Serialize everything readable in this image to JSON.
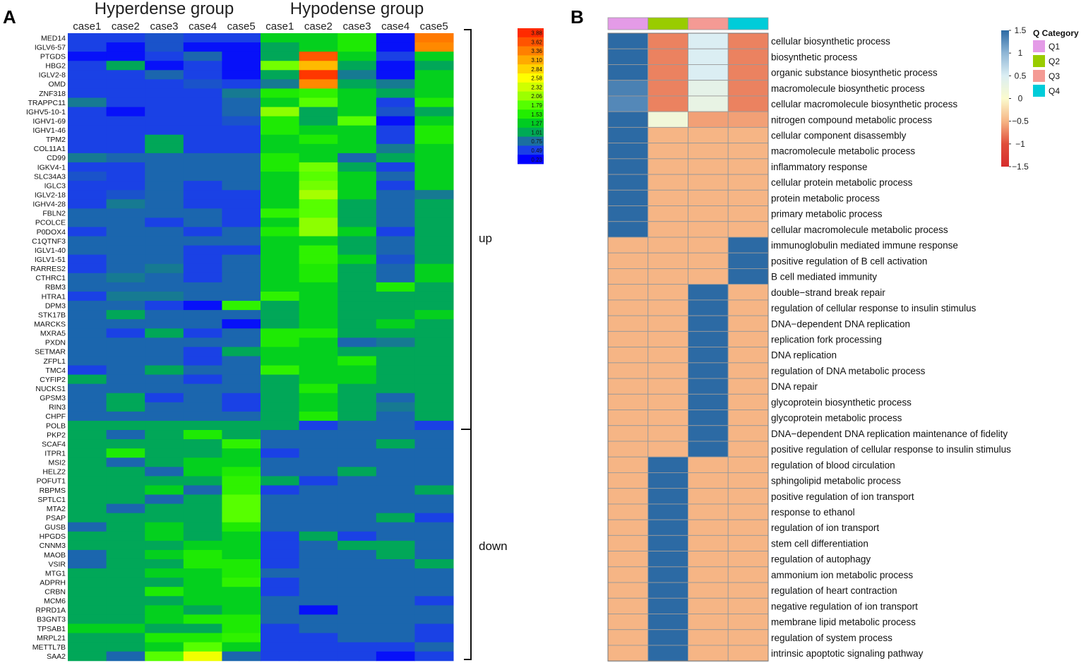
{
  "panels": {
    "a_letter": "A",
    "b_letter": "B"
  },
  "chart_data": [
    {
      "type": "heatmap",
      "panel": "A",
      "group_titles": [
        "Hyperdense group",
        "Hypodense group"
      ],
      "columns": [
        "case1",
        "case2",
        "case3",
        "case4",
        "case5",
        "case1",
        "case2",
        "case3",
        "case4",
        "case5"
      ],
      "rows": [
        "MED14",
        "IGLV6-57",
        "PTGDS",
        "HBG2",
        "IGLV2-8",
        "OMD",
        "ZNF318",
        "TRAPPC11",
        "IGHV5-10-1",
        "IGHV1-69",
        "IGHV1-46",
        "TPM2",
        "COL11A1",
        "CD99",
        "IGKV4-1",
        "SLC34A3",
        "IGLC3",
        "IGLV2-18",
        "IGHV4-28",
        "FBLN2",
        "PCOLCE",
        "P0DOX4",
        "C1QTNF3",
        "IGLV1-40",
        "IGLV1-51",
        "RARRES2",
        "CTHRC1",
        "RBM3",
        "HTRA1",
        "DPM3",
        "STK17B",
        "MARCKS",
        "MXRA5",
        "PXDN",
        "SETMAR",
        "ZFPL1",
        "TMC4",
        "CYFIP2",
        "NUCKS1",
        "GPSM3",
        "RIN3",
        "CHPF",
        "POLB",
        "PKP2",
        "SCAF4",
        "ITPR1",
        "MSI2",
        "HELZ2",
        "POFUT1",
        "RBPMS",
        "SPTLC1",
        "MTA2",
        "PSAP",
        "GUSB",
        "HPGDS",
        "CNNM3",
        "MAOB",
        "VSIR",
        "MTG1",
        "ADPRH",
        "CRBN",
        "MCM6",
        "RPRD1A",
        "B3GNT3",
        "TPSAB1",
        "MRPL21",
        "METTL7B",
        "SAA2"
      ],
      "values": [
        [
          0.5,
          0.5,
          0.6,
          0.5,
          0.5,
          1.3,
          1.3,
          1.5,
          0.3,
          3.4
        ],
        [
          0.5,
          0.3,
          0.6,
          0.3,
          0.3,
          1.0,
          1.3,
          1.5,
          0.3,
          3.3
        ],
        [
          0.3,
          0.3,
          0.5,
          0.7,
          0.3,
          1.0,
          3.6,
          1.3,
          0.5,
          1.3
        ],
        [
          0.5,
          1.0,
          0.3,
          0.5,
          0.3,
          1.9,
          3.0,
          1.0,
          0.3,
          1.0
        ],
        [
          0.5,
          0.5,
          0.7,
          0.5,
          0.3,
          1.0,
          3.8,
          0.8,
          0.3,
          1.3
        ],
        [
          0.5,
          0.5,
          0.5,
          0.6,
          0.5,
          0.8,
          3.3,
          1.0,
          0.8,
          1.3
        ],
        [
          0.5,
          0.5,
          0.5,
          0.5,
          0.8,
          1.5,
          1.6,
          1.3,
          1.0,
          1.3
        ],
        [
          0.8,
          0.5,
          0.5,
          0.5,
          0.7,
          1.3,
          1.8,
          1.3,
          0.5,
          1.5
        ],
        [
          0.5,
          0.3,
          0.5,
          0.5,
          0.7,
          2.0,
          1.0,
          1.3,
          0.6,
          1.0
        ],
        [
          0.5,
          0.5,
          0.5,
          0.5,
          0.6,
          1.5,
          1.0,
          1.8,
          0.3,
          1.3
        ],
        [
          0.5,
          0.5,
          0.5,
          0.5,
          0.5,
          1.5,
          1.3,
          1.3,
          0.5,
          1.5
        ],
        [
          0.5,
          0.5,
          1.0,
          0.5,
          0.5,
          1.3,
          1.5,
          1.3,
          0.5,
          1.5
        ],
        [
          0.5,
          0.5,
          1.0,
          0.5,
          0.5,
          1.3,
          1.3,
          1.3,
          0.8,
          1.3
        ],
        [
          0.8,
          0.7,
          0.7,
          0.7,
          0.7,
          1.5,
          1.3,
          0.7,
          1.0,
          1.3
        ],
        [
          0.5,
          0.5,
          0.7,
          0.7,
          0.7,
          1.5,
          1.9,
          1.0,
          0.5,
          1.3
        ],
        [
          0.6,
          0.5,
          0.7,
          0.7,
          0.7,
          1.3,
          1.8,
          1.3,
          0.7,
          1.3
        ],
        [
          0.5,
          0.5,
          0.7,
          0.5,
          0.7,
          1.3,
          1.9,
          1.3,
          0.5,
          1.3
        ],
        [
          0.5,
          0.6,
          0.7,
          0.5,
          0.5,
          1.3,
          2.1,
          1.3,
          0.7,
          0.8
        ],
        [
          0.5,
          0.8,
          0.7,
          0.5,
          0.5,
          1.3,
          1.8,
          1.0,
          0.7,
          1.0
        ],
        [
          0.7,
          0.7,
          0.7,
          0.7,
          0.5,
          1.6,
          1.8,
          1.0,
          0.7,
          1.0
        ],
        [
          0.7,
          0.7,
          0.5,
          0.7,
          0.5,
          1.3,
          2.0,
          1.0,
          0.7,
          1.0
        ],
        [
          0.5,
          0.7,
          0.7,
          0.5,
          0.7,
          1.5,
          2.0,
          1.3,
          0.5,
          1.0
        ],
        [
          0.7,
          0.7,
          0.7,
          0.7,
          0.7,
          1.3,
          1.3,
          1.0,
          0.7,
          1.0
        ],
        [
          0.7,
          0.7,
          0.7,
          0.5,
          0.5,
          1.3,
          1.6,
          1.0,
          0.7,
          1.0
        ],
        [
          0.5,
          0.7,
          0.7,
          0.5,
          0.7,
          1.3,
          1.6,
          1.3,
          0.6,
          1.0
        ],
        [
          0.5,
          0.7,
          0.8,
          0.5,
          0.7,
          1.3,
          1.5,
          1.0,
          0.7,
          1.3
        ],
        [
          0.7,
          0.8,
          0.7,
          0.5,
          0.7,
          1.3,
          1.5,
          1.0,
          0.7,
          1.3
        ],
        [
          0.7,
          0.7,
          0.7,
          0.7,
          0.7,
          1.3,
          1.3,
          1.0,
          1.5,
          1.0
        ],
        [
          0.5,
          0.8,
          0.8,
          0.7,
          0.7,
          1.6,
          1.3,
          1.0,
          1.0,
          1.0
        ],
        [
          0.7,
          0.7,
          0.5,
          0.3,
          1.6,
          1.0,
          1.3,
          1.0,
          1.0,
          1.0
        ],
        [
          0.7,
          1.0,
          0.7,
          0.7,
          0.7,
          1.0,
          1.3,
          1.0,
          1.0,
          1.3
        ],
        [
          0.7,
          0.7,
          0.7,
          0.7,
          0.3,
          1.0,
          1.3,
          1.0,
          1.3,
          1.0
        ],
        [
          0.7,
          0.5,
          1.0,
          0.5,
          0.7,
          1.5,
          1.5,
          1.0,
          1.0,
          1.0
        ],
        [
          0.7,
          0.7,
          0.7,
          0.7,
          0.7,
          1.5,
          1.3,
          0.7,
          0.8,
          1.0
        ],
        [
          0.7,
          0.7,
          0.7,
          0.5,
          1.0,
          1.3,
          1.3,
          1.0,
          1.0,
          1.0
        ],
        [
          0.7,
          0.7,
          0.7,
          0.5,
          0.7,
          1.3,
          1.3,
          1.5,
          1.0,
          1.0
        ],
        [
          0.5,
          0.7,
          1.0,
          0.7,
          0.7,
          1.6,
          1.3,
          1.3,
          1.0,
          1.0
        ],
        [
          1.0,
          0.7,
          0.7,
          0.5,
          0.7,
          1.0,
          1.3,
          1.3,
          1.0,
          1.0
        ],
        [
          0.7,
          0.7,
          0.7,
          0.7,
          0.7,
          1.0,
          1.5,
          1.0,
          1.0,
          1.0
        ],
        [
          0.7,
          1.0,
          0.5,
          0.7,
          0.5,
          1.0,
          1.3,
          1.0,
          0.7,
          1.0
        ],
        [
          0.7,
          1.0,
          0.7,
          0.7,
          0.5,
          1.0,
          1.3,
          1.0,
          0.8,
          1.0
        ],
        [
          0.7,
          0.7,
          0.7,
          0.7,
          0.7,
          1.0,
          1.5,
          1.0,
          0.7,
          1.0
        ],
        [
          1.0,
          1.0,
          1.0,
          1.0,
          1.0,
          1.0,
          0.5,
          0.7,
          0.7,
          0.5
        ],
        [
          1.0,
          0.7,
          1.0,
          1.5,
          1.0,
          0.7,
          0.7,
          0.7,
          0.7,
          0.7
        ],
        [
          1.0,
          1.0,
          1.0,
          1.0,
          1.6,
          0.7,
          0.7,
          0.7,
          1.0,
          0.7
        ],
        [
          1.0,
          1.5,
          1.0,
          1.0,
          1.3,
          0.5,
          0.7,
          0.7,
          0.7,
          0.7
        ],
        [
          1.0,
          0.7,
          1.0,
          1.3,
          1.3,
          0.7,
          0.7,
          0.7,
          0.7,
          0.7
        ],
        [
          1.0,
          1.0,
          0.7,
          1.3,
          1.5,
          0.7,
          0.7,
          1.0,
          0.7,
          0.7
        ],
        [
          1.0,
          1.0,
          1.0,
          1.0,
          1.6,
          1.0,
          0.5,
          0.7,
          0.7,
          0.7
        ],
        [
          1.0,
          1.0,
          1.3,
          0.7,
          1.6,
          0.5,
          0.7,
          0.7,
          0.7,
          1.0
        ],
        [
          1.0,
          1.0,
          0.7,
          1.0,
          1.8,
          0.7,
          0.7,
          0.7,
          0.7,
          0.7
        ],
        [
          1.0,
          0.7,
          1.0,
          1.0,
          1.8,
          0.7,
          0.7,
          0.7,
          0.7,
          0.7
        ],
        [
          1.0,
          1.0,
          1.0,
          1.0,
          1.8,
          0.7,
          0.7,
          0.7,
          1.0,
          0.5
        ],
        [
          0.7,
          1.0,
          1.3,
          1.0,
          1.5,
          0.7,
          0.7,
          0.7,
          0.7,
          0.7
        ],
        [
          1.0,
          1.0,
          1.3,
          1.0,
          1.3,
          0.5,
          1.0,
          0.5,
          0.7,
          0.7
        ],
        [
          1.0,
          1.0,
          1.0,
          1.3,
          1.3,
          0.5,
          0.7,
          1.0,
          1.0,
          0.7
        ],
        [
          0.7,
          1.0,
          1.3,
          1.5,
          1.3,
          0.5,
          0.7,
          0.7,
          1.0,
          0.7
        ],
        [
          0.7,
          1.0,
          1.0,
          1.5,
          1.5,
          0.5,
          0.7,
          0.7,
          0.7,
          1.0
        ],
        [
          1.0,
          1.0,
          1.3,
          1.3,
          1.5,
          0.7,
          0.7,
          0.7,
          0.7,
          0.7
        ],
        [
          1.0,
          1.0,
          1.0,
          1.3,
          1.6,
          0.5,
          0.7,
          0.7,
          0.7,
          0.7
        ],
        [
          1.0,
          1.0,
          1.5,
          1.3,
          1.3,
          0.5,
          0.7,
          0.7,
          0.7,
          0.7
        ],
        [
          1.0,
          1.0,
          1.0,
          1.3,
          1.3,
          0.7,
          0.7,
          0.7,
          0.7,
          0.5
        ],
        [
          1.0,
          1.0,
          1.3,
          1.0,
          1.3,
          0.7,
          0.3,
          0.7,
          0.7,
          0.7
        ],
        [
          1.0,
          1.0,
          1.3,
          1.5,
          1.5,
          0.7,
          0.7,
          0.7,
          0.7,
          0.7
        ],
        [
          1.3,
          1.3,
          1.0,
          1.0,
          1.5,
          0.5,
          0.7,
          0.7,
          0.7,
          0.5
        ],
        [
          1.0,
          1.0,
          1.5,
          1.5,
          1.6,
          0.5,
          0.5,
          0.7,
          0.7,
          0.5
        ],
        [
          1.0,
          1.0,
          1.3,
          1.8,
          1.3,
          0.5,
          0.5,
          0.5,
          0.5,
          0.7
        ],
        [
          1.0,
          0.7,
          1.8,
          2.5,
          0.7,
          0.5,
          0.5,
          0.5,
          0.3,
          0.5
        ]
      ],
      "colorbar_ticks": [
        "3.88",
        "3.62",
        "3.36",
        "3.10",
        "2.84",
        "2.58",
        "2.32",
        "2.06",
        "1.79",
        "1.53",
        "1.27",
        "1.01",
        "0.75",
        "0.49",
        "0.23"
      ],
      "colorbar_colors": [
        "#ff2a00",
        "#ff5400",
        "#ff8000",
        "#ffaa00",
        "#ffd400",
        "#ffff00",
        "#cfff00",
        "#9cff00",
        "#55ff00",
        "#22ee00",
        "#00cc22",
        "#00aa55",
        "#1b6fa0",
        "#1a3fe8",
        "#0000ff"
      ],
      "groups": [
        {
          "label": "up",
          "first_row": 0,
          "last_row": 42
        },
        {
          "label": "down",
          "first_row": 43,
          "last_row": 67
        }
      ]
    },
    {
      "type": "heatmap",
      "panel": "B",
      "columns": [
        "Q1",
        "Q2",
        "Q3",
        "Q4"
      ],
      "category_colors": [
        "#e49be7",
        "#99cc00",
        "#f49a94",
        "#00ccd9"
      ],
      "rows": [
        "cellular biosynthetic process",
        "biosynthetic process",
        "organic substance biosynthetic process",
        "macromolecule biosynthetic process",
        "cellular macromolecule biosynthetic process",
        "nitrogen compound metabolic process",
        "cellular component disassembly",
        "macromolecule metabolic process",
        "inflammatory response",
        "cellular protein metabolic process",
        "protein metabolic process",
        "primary metabolic process",
        "cellular macromolecule metabolic process",
        "immunoglobulin mediated immune response",
        "positive regulation of B cell activation",
        "B cell mediated immunity",
        "double−strand break repair",
        "regulation of cellular response to insulin stimulus",
        "DNA−dependent DNA replication",
        "replication fork processing",
        "DNA replication",
        "regulation of DNA metabolic process",
        "DNA repair",
        "glycoprotein biosynthetic process",
        "glycoprotein metabolic process",
        "DNA−dependent DNA replication maintenance of fidelity",
        "positive regulation of cellular response to insulin stimulus",
        "regulation of blood circulation",
        "sphingolipid metabolic process",
        "positive regulation of ion transport",
        "response to ethanol",
        "regulation of ion transport",
        "stem cell differentiation",
        "regulation of autophagy",
        "ammonium ion metabolic process",
        "regulation of heart contraction",
        "negative regulation of ion transport",
        "membrane lipid metabolic process",
        "regulation of system process",
        "intrinsic apoptotic signaling pathway"
      ],
      "values": [
        [
          1.5,
          -0.75,
          0.5,
          -0.75
        ],
        [
          1.5,
          -0.75,
          0.5,
          -0.75
        ],
        [
          1.5,
          -0.75,
          0.5,
          -0.75
        ],
        [
          1.35,
          -0.75,
          0.35,
          -0.75
        ],
        [
          1.3,
          -0.75,
          0.3,
          -0.75
        ],
        [
          1.5,
          0.15,
          -0.6,
          -0.6
        ],
        [
          1.5,
          -0.5,
          -0.5,
          -0.5
        ],
        [
          1.5,
          -0.5,
          -0.5,
          -0.5
        ],
        [
          1.5,
          -0.5,
          -0.5,
          -0.5
        ],
        [
          1.5,
          -0.5,
          -0.5,
          -0.5
        ],
        [
          1.5,
          -0.5,
          -0.5,
          -0.5
        ],
        [
          1.5,
          -0.5,
          -0.5,
          -0.5
        ],
        [
          1.5,
          -0.5,
          -0.5,
          -0.5
        ],
        [
          -0.5,
          -0.5,
          -0.5,
          1.5
        ],
        [
          -0.5,
          -0.5,
          -0.5,
          1.5
        ],
        [
          -0.5,
          -0.5,
          -0.5,
          1.5
        ],
        [
          -0.5,
          -0.5,
          1.5,
          -0.5
        ],
        [
          -0.5,
          -0.5,
          1.5,
          -0.5
        ],
        [
          -0.5,
          -0.5,
          1.5,
          -0.5
        ],
        [
          -0.5,
          -0.5,
          1.5,
          -0.5
        ],
        [
          -0.5,
          -0.5,
          1.5,
          -0.5
        ],
        [
          -0.5,
          -0.5,
          1.5,
          -0.5
        ],
        [
          -0.5,
          -0.5,
          1.5,
          -0.5
        ],
        [
          -0.5,
          -0.5,
          1.5,
          -0.5
        ],
        [
          -0.5,
          -0.5,
          1.5,
          -0.5
        ],
        [
          -0.5,
          -0.5,
          1.5,
          -0.5
        ],
        [
          -0.5,
          -0.5,
          1.5,
          -0.5
        ],
        [
          -0.5,
          1.5,
          -0.5,
          -0.5
        ],
        [
          -0.5,
          1.5,
          -0.5,
          -0.5
        ],
        [
          -0.5,
          1.5,
          -0.5,
          -0.5
        ],
        [
          -0.5,
          1.5,
          -0.5,
          -0.5
        ],
        [
          -0.5,
          1.5,
          -0.5,
          -0.5
        ],
        [
          -0.5,
          1.5,
          -0.5,
          -0.5
        ],
        [
          -0.5,
          1.5,
          -0.5,
          -0.5
        ],
        [
          -0.5,
          1.5,
          -0.5,
          -0.5
        ],
        [
          -0.5,
          1.5,
          -0.5,
          -0.5
        ],
        [
          -0.5,
          1.5,
          -0.5,
          -0.5
        ],
        [
          -0.5,
          1.5,
          -0.5,
          -0.5
        ],
        [
          -0.5,
          1.5,
          -0.5,
          -0.5
        ],
        [
          -0.5,
          1.5,
          -0.5,
          -0.5
        ]
      ],
      "scale_range": [
        -1.5,
        1.5
      ],
      "scale_ticks": [
        "1.5",
        "1",
        "0.5",
        "0",
        "−0.5",
        "−1",
        "−1.5"
      ],
      "scale_colors": [
        "#2c6aa4",
        "#8fb6d6",
        "#dbeef3",
        "#fbfbce",
        "#f6b585",
        "#e04e3b",
        "#d62c2c"
      ],
      "legend_title": "Q Category",
      "legend_items": [
        "Q1",
        "Q2",
        "Q3",
        "Q4"
      ]
    }
  ]
}
